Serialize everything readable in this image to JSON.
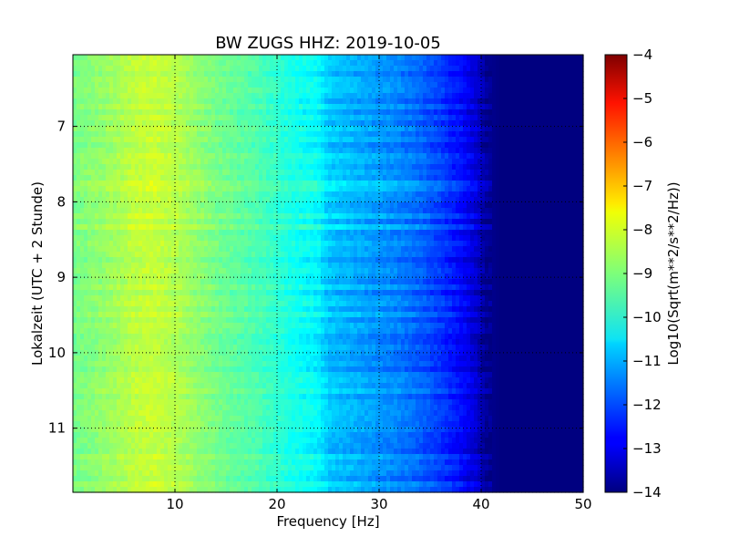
{
  "chart_data": {
    "type": "heatmap",
    "title": "BW ZUGS HHZ: 2019-10-05",
    "xlabel": "Frequency [Hz]",
    "ylabel": "Lokalzeit (UTC + 2 Stunde)",
    "xlim": [
      0,
      50
    ],
    "ylim": [
      6.05,
      11.85
    ],
    "y_axis_direction": "inverted (time increases downward)",
    "xticks": [
      10,
      20,
      30,
      40,
      50
    ],
    "yticks": [
      7,
      8,
      9,
      10,
      11
    ],
    "grid": "dotted",
    "colormap": "jet",
    "colorbar": {
      "label": "Log10(Sqrt(m**2/s**2/Hz))",
      "range": [
        -14,
        -4
      ],
      "ticks": [
        -4,
        -5,
        -6,
        -7,
        -8,
        -9,
        -10,
        -11,
        -12,
        -13,
        -14
      ]
    },
    "level_profile": {
      "frequency_hz": [
        0,
        2,
        4,
        6,
        8,
        10,
        12,
        14,
        16,
        18,
        20,
        22,
        24,
        25,
        26,
        28,
        30,
        32,
        34,
        36,
        38,
        39.5,
        40.5,
        42,
        44,
        46,
        48,
        50
      ],
      "log10_amplitude": [
        -9.1,
        -8.9,
        -8.7,
        -8.4,
        -8.3,
        -8.5,
        -8.8,
        -9.1,
        -9.3,
        -9.5,
        -9.8,
        -10.1,
        -10.3,
        -10.8,
        -10.9,
        -11.1,
        -11.3,
        -11.5,
        -11.8,
        -12.2,
        -12.7,
        -13.2,
        -13.8,
        -14.0,
        -14.0,
        -14.0,
        -14.0,
        -14.0
      ]
    }
  }
}
